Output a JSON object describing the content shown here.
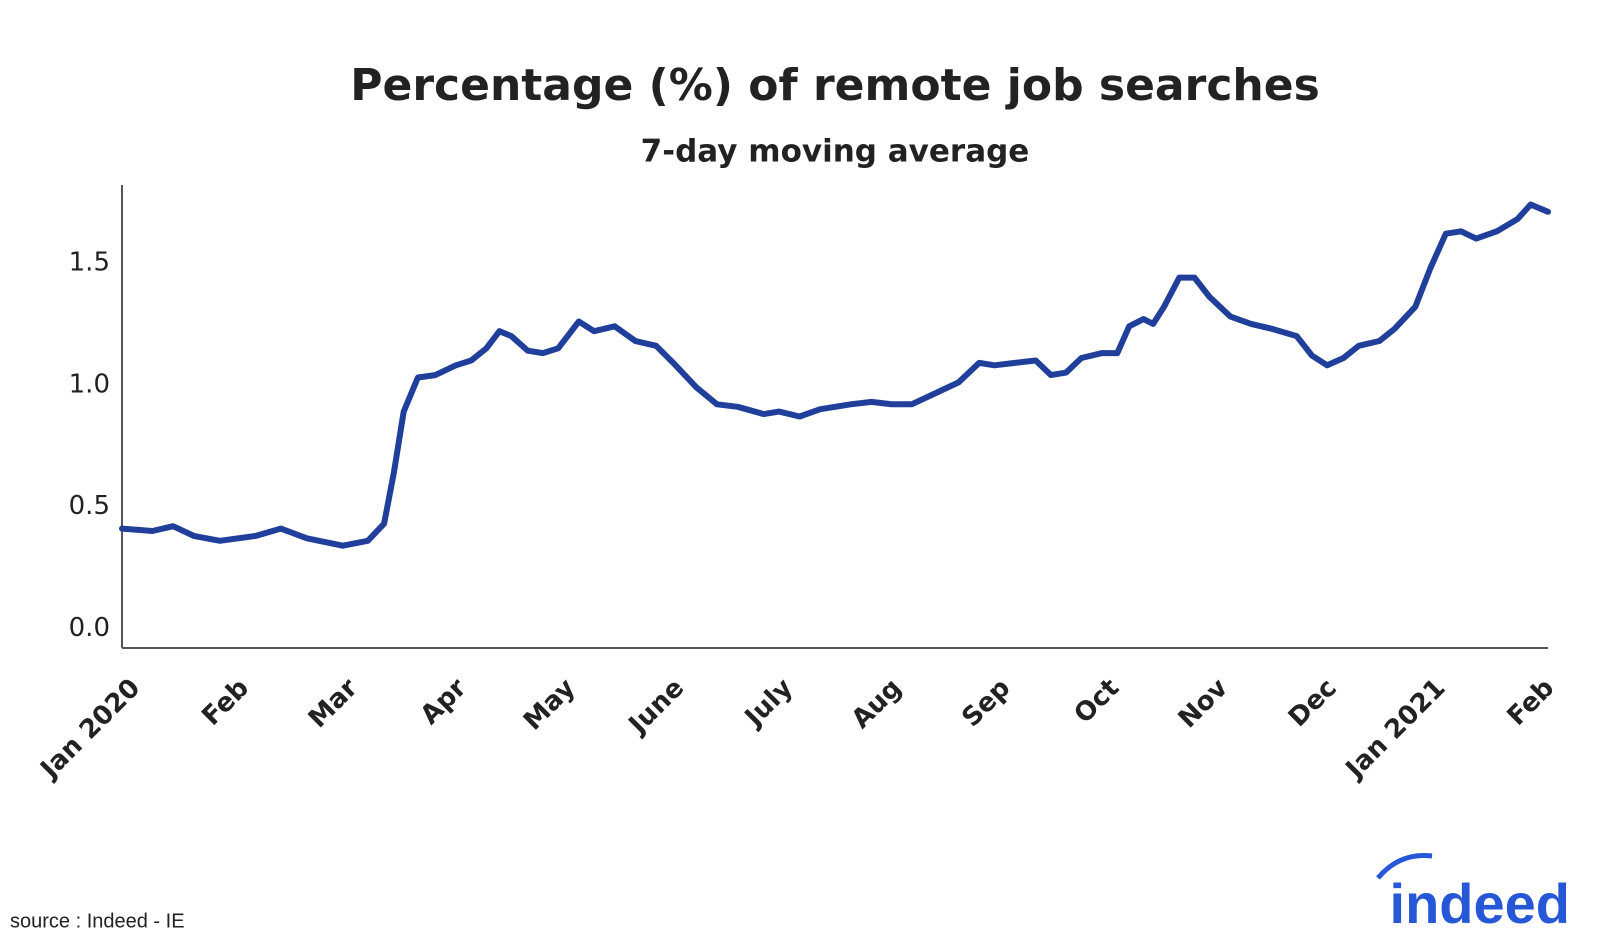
{
  "chart_data": {
    "type": "line",
    "title": "Percentage (%) of remote job searches",
    "subtitle": "7-day moving average",
    "source": "source : Indeed - IE",
    "logo": "indeed",
    "grid": false,
    "xlim": [
      0,
      13.11
    ],
    "xticks": [
      {
        "value": 0,
        "label": "Jan 2020"
      },
      {
        "value": 1,
        "label": "Feb"
      },
      {
        "value": 2,
        "label": "Mar"
      },
      {
        "value": 3,
        "label": "Apr"
      },
      {
        "value": 4,
        "label": "May"
      },
      {
        "value": 5,
        "label": "June"
      },
      {
        "value": 6,
        "label": "July"
      },
      {
        "value": 7,
        "label": "Aug"
      },
      {
        "value": 8,
        "label": "Sep"
      },
      {
        "value": 9,
        "label": "Oct"
      },
      {
        "value": 10,
        "label": "Nov"
      },
      {
        "value": 11,
        "label": "Dec"
      },
      {
        "value": 12,
        "label": "Jan 2021"
      },
      {
        "value": 13,
        "label": "Feb"
      }
    ],
    "ylim": [
      -0.08,
      1.82
    ],
    "yticks": [
      {
        "value": 0,
        "label": "0.0"
      },
      0.5,
      {
        "value": 1,
        "label": "1.0"
      },
      1.5
    ],
    "x": [
      0,
      0.28,
      0.47,
      0.66,
      0.9,
      1.23,
      1.46,
      1.7,
      2.03,
      2.26,
      2.41,
      2.5,
      2.59,
      2.72,
      2.88,
      3.07,
      3.21,
      3.35,
      3.47,
      3.58,
      3.73,
      3.87,
      4.01,
      4.2,
      4.34,
      4.53,
      4.72,
      4.91,
      5.09,
      5.28,
      5.47,
      5.66,
      5.9,
      6.04,
      6.23,
      6.42,
      6.7,
      6.89,
      7.08,
      7.26,
      7.45,
      7.69,
      7.88,
      8.02,
      8.21,
      8.4,
      8.54,
      8.68,
      8.82,
      9.01,
      9.15,
      9.26,
      9.39,
      9.48,
      9.58,
      9.72,
      9.86,
      10,
      10.19,
      10.38,
      10.57,
      10.8,
      10.94,
      11.08,
      11.23,
      11.37,
      11.56,
      11.7,
      11.89,
      12.03,
      12.17,
      12.31,
      12.45,
      12.64,
      12.83,
      12.95,
      13.11
    ],
    "series": [
      {
        "color": "#1f3f9a",
        "values": [
          0.41,
          0.4,
          0.42,
          0.38,
          0.36,
          0.38,
          0.41,
          0.37,
          0.34,
          0.36,
          0.43,
          0.64,
          0.89,
          1.03,
          1.04,
          1.08,
          1.1,
          1.15,
          1.22,
          1.2,
          1.14,
          1.13,
          1.15,
          1.26,
          1.22,
          1.24,
          1.18,
          1.16,
          1.08,
          0.99,
          0.92,
          0.91,
          0.88,
          0.89,
          0.87,
          0.9,
          0.92,
          0.93,
          0.92,
          0.92,
          0.96,
          1.01,
          1.09,
          1.08,
          1.09,
          1.1,
          1.04,
          1.05,
          1.11,
          1.13,
          1.13,
          1.24,
          1.27,
          1.25,
          1.32,
          1.44,
          1.44,
          1.36,
          1.28,
          1.25,
          1.23,
          1.2,
          1.12,
          1.08,
          1.11,
          1.16,
          1.18,
          1.23,
          1.32,
          1.48,
          1.62,
          1.63,
          1.6,
          1.63,
          1.68,
          1.74,
          1.71
        ]
      }
    ]
  }
}
